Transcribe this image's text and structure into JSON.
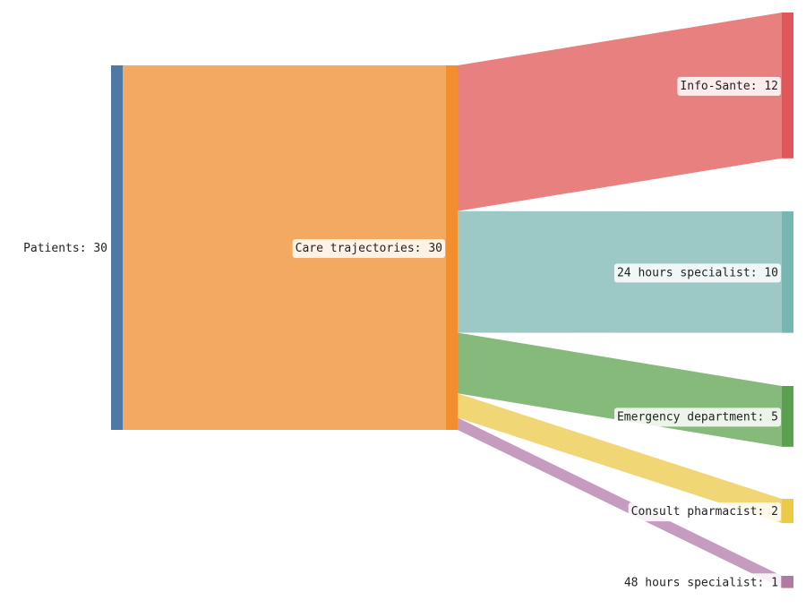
{
  "chart_data": {
    "type": "sankey",
    "title": "",
    "nodes": [
      {
        "id": "patients",
        "label": "Patients: 30",
        "name": "Patients",
        "value": 30,
        "color": "#4e79a7"
      },
      {
        "id": "care",
        "label": "Care trajectories: 30",
        "name": "Care trajectories",
        "value": 30,
        "color": "#f28e2b"
      },
      {
        "id": "info",
        "label": "Info-Sante: 12",
        "name": "Info-Sante",
        "value": 12,
        "color": "#e15759"
      },
      {
        "id": "h24",
        "label": "24 hours specialist: 10",
        "name": "24 hours specialist",
        "value": 10,
        "color": "#76b7b2"
      },
      {
        "id": "ed",
        "label": "Emergency department: 5",
        "name": "Emergency department",
        "value": 5,
        "color": "#59a14f"
      },
      {
        "id": "pharm",
        "label": "Consult pharmacist: 2",
        "name": "Consult pharmacist",
        "value": 2,
        "color": "#edc948"
      },
      {
        "id": "h48",
        "label": "48 hours specialist: 1",
        "name": "48 hours specialist",
        "value": 1,
        "color": "#b07aa1"
      }
    ],
    "links": [
      {
        "source": "patients",
        "target": "care",
        "value": 30,
        "color": "#f3a962"
      },
      {
        "source": "care",
        "target": "info",
        "value": 12,
        "color": "#e88080"
      },
      {
        "source": "care",
        "target": "h24",
        "value": 10,
        "color": "#9cc9c5"
      },
      {
        "source": "care",
        "target": "ed",
        "value": 5,
        "color": "#85ba7b"
      },
      {
        "source": "care",
        "target": "pharm",
        "value": 2,
        "color": "#f1d676"
      },
      {
        "source": "care",
        "target": "h48",
        "value": 1,
        "color": "#c59bc0"
      }
    ]
  }
}
